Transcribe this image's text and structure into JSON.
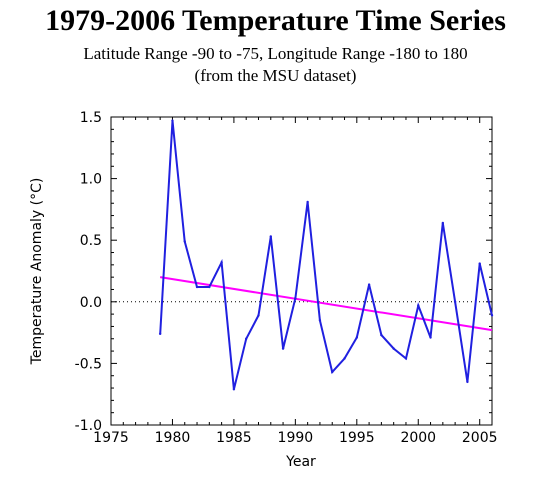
{
  "chart_data": {
    "type": "line",
    "title": "1979-2006 Temperature Time Series",
    "subtitle_lines": [
      "Latitude Range -90 to -75, Longitude Range -180 to 180",
      "(from the MSU dataset)"
    ],
    "xlabel": "Year",
    "ylabel": "Temperature Anomaly (°C)",
    "xlim": [
      1975,
      2006
    ],
    "ylim": [
      -1.0,
      1.5
    ],
    "xticks": [
      "1975",
      "1980",
      "1985",
      "1990",
      "1995",
      "2000",
      "2005"
    ],
    "yticks": [
      "1.5",
      "1.0",
      "0.5",
      "0.0",
      "-0.5",
      "-1.0"
    ],
    "zero_line": "dotted",
    "series": [
      {
        "color": "#2020e0",
        "x": [
          1979,
          1980,
          1981,
          1982,
          1983,
          1984,
          1985,
          1986,
          1987,
          1988,
          1989,
          1990,
          1991,
          1992,
          1993,
          1994,
          1995,
          1996,
          1997,
          1998,
          1999,
          2000,
          2001,
          2002,
          2003,
          2004,
          2005,
          2006
        ],
        "y": [
          -0.26,
          1.47,
          0.49,
          0.12,
          0.12,
          0.32,
          -0.71,
          -0.3,
          -0.11,
          0.53,
          -0.38,
          0.03,
          0.81,
          -0.15,
          -0.57,
          -0.46,
          -0.29,
          0.14,
          -0.27,
          -0.38,
          -0.46,
          -0.03,
          -0.29,
          0.64,
          0.0,
          -0.65,
          0.31,
          -0.11
        ]
      },
      {
        "type": "trend",
        "color": "#ff00ff",
        "x": [
          1979,
          2006
        ],
        "y": [
          0.2,
          -0.23
        ]
      }
    ]
  }
}
